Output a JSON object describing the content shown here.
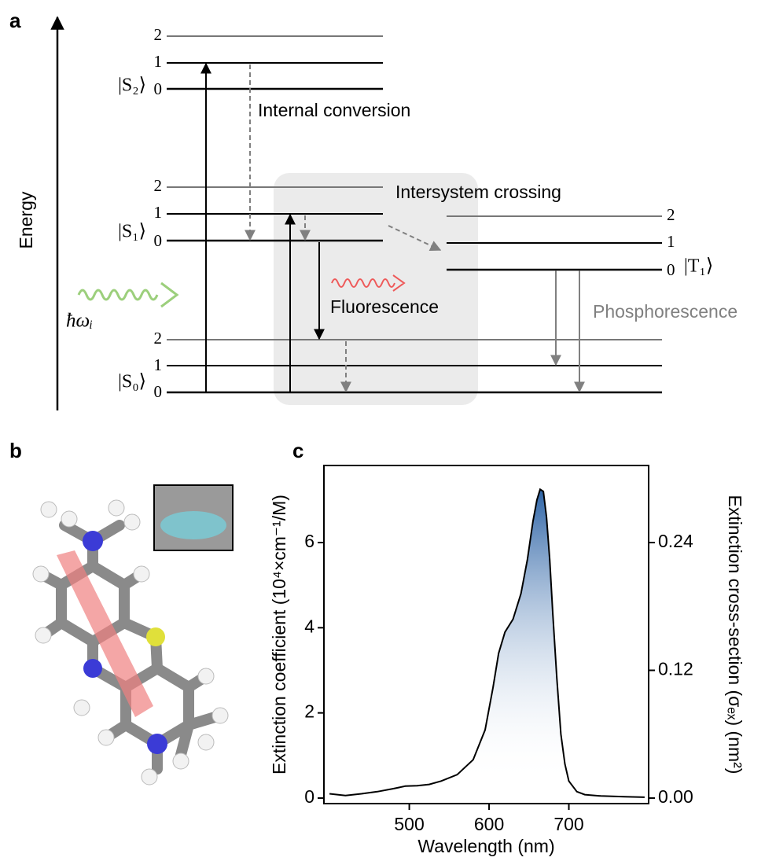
{
  "panel_a": {
    "label": "a",
    "axis_label": "Energy",
    "states": [
      {
        "name": "|S₂⟩",
        "levels": [
          "2",
          "1",
          "0"
        ]
      },
      {
        "name": "|S₁⟩",
        "levels": [
          "2",
          "1",
          "0"
        ]
      },
      {
        "name": "|S₀⟩",
        "levels": [
          "2",
          "1",
          "0"
        ]
      },
      {
        "name": "|T₁⟩",
        "levels": [
          "2",
          "1",
          "0"
        ]
      }
    ],
    "excitation": "ħωᵢ",
    "processes": [
      "Internal conversion",
      "Intersystem crossing",
      "Fluorescence",
      "Phosphorescence"
    ]
  },
  "panel_b": {
    "label": "b"
  },
  "chart_data": {
    "type": "line",
    "panel_label": "c",
    "x_label": "Wavelength (nm)",
    "y_label": "Extinction coefficient (10⁴×cm⁻¹/M)",
    "y2_label": "Extinction cross-section (σₑₓ) (nm²)",
    "x": [
      400,
      420,
      440,
      460,
      480,
      495,
      510,
      525,
      540,
      560,
      580,
      595,
      605,
      612,
      620,
      630,
      640,
      648,
      655,
      660,
      664,
      668,
      672,
      676,
      680,
      685,
      690,
      695,
      700,
      710,
      720,
      740,
      770,
      795
    ],
    "values": [
      0.1,
      0.06,
      0.1,
      0.15,
      0.22,
      0.28,
      0.29,
      0.32,
      0.4,
      0.55,
      0.9,
      1.6,
      2.6,
      3.4,
      3.9,
      4.2,
      4.8,
      5.6,
      6.5,
      7.0,
      7.25,
      7.2,
      6.6,
      5.6,
      4.3,
      2.8,
      1.5,
      0.8,
      0.4,
      0.15,
      0.08,
      0.05,
      0.03,
      0.02
    ],
    "color": "#000000",
    "fill_color": "#2e64a6",
    "xlim": [
      393,
      800
    ],
    "xticks": [
      500,
      600,
      700
    ],
    "ylim": [
      -0.13,
      7.81
    ],
    "yticks": [
      0,
      2,
      4,
      6
    ],
    "y2lim": [
      -0.0052,
      0.3124
    ],
    "y2ticks": [
      {
        "value": 0,
        "label": "0.00"
      },
      0.12,
      0.24
    ]
  }
}
